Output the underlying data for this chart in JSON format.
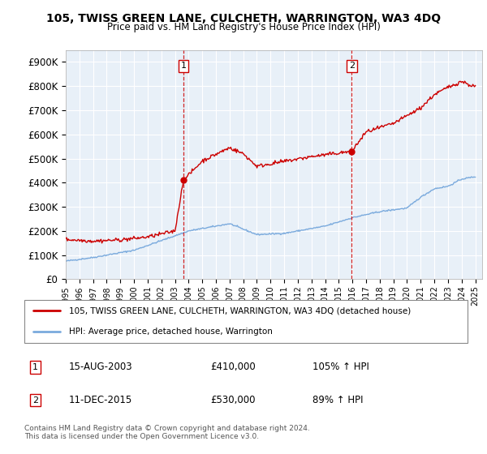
{
  "title": "105, TWISS GREEN LANE, CULCHETH, WARRINGTON, WA3 4DQ",
  "subtitle": "Price paid vs. HM Land Registry's House Price Index (HPI)",
  "x_start": 1995.0,
  "x_end": 2025.5,
  "ylim": [
    0,
    950000
  ],
  "yticks": [
    0,
    100000,
    200000,
    300000,
    400000,
    500000,
    600000,
    700000,
    800000,
    900000
  ],
  "ytick_labels": [
    "£0",
    "£100K",
    "£200K",
    "£300K",
    "£400K",
    "£500K",
    "£600K",
    "£700K",
    "£800K",
    "£900K"
  ],
  "x_tick_years": [
    1995,
    1996,
    1997,
    1998,
    1999,
    2000,
    2001,
    2002,
    2003,
    2004,
    2005,
    2006,
    2007,
    2008,
    2009,
    2010,
    2011,
    2012,
    2013,
    2014,
    2015,
    2016,
    2017,
    2018,
    2019,
    2020,
    2021,
    2022,
    2023,
    2024,
    2025
  ],
  "sale1_x": 2003.62,
  "sale1_y": 410000,
  "sale1_label": "1",
  "sale1_date": "15-AUG-2003",
  "sale1_price": "£410,000",
  "sale1_hpi": "105% ↑ HPI",
  "sale2_x": 2015.95,
  "sale2_y": 530000,
  "sale2_label": "2",
  "sale2_date": "11-DEC-2015",
  "sale2_price": "£530,000",
  "sale2_hpi": "89% ↑ HPI",
  "red_line_color": "#cc0000",
  "blue_line_color": "#7aaadd",
  "plot_bg": "#e8f0f8",
  "legend_line1": "105, TWISS GREEN LANE, CULCHETH, WARRINGTON, WA3 4DQ (detached house)",
  "legend_line2": "HPI: Average price, detached house, Warrington",
  "footnote": "Contains HM Land Registry data © Crown copyright and database right 2024.\nThis data is licensed under the Open Government Licence v3.0."
}
